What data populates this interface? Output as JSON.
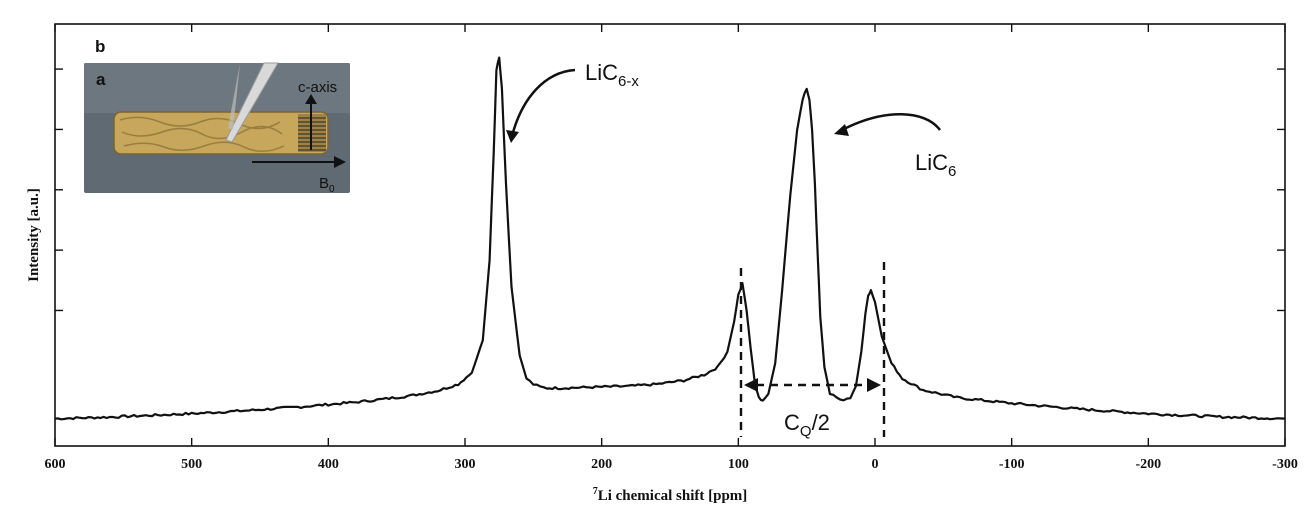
{
  "chart_data": {
    "type": "line",
    "panel_label": "b",
    "xlabel_superscript": "7",
    "xlabel": "Li chemical shift [ppm]",
    "ylabel": "Intensity [a.u.]",
    "xlim": [
      600,
      -300
    ],
    "x_ticks": [
      "600",
      "500",
      "400",
      "300",
      "200",
      "100",
      "0",
      "-100",
      "-200",
      "-300"
    ],
    "y_ticks_labeled": false,
    "grid": false,
    "legend": "none",
    "series": [
      {
        "x": [
          600,
          580,
          560,
          540,
          520,
          500,
          480,
          460,
          440,
          420,
          400,
          380,
          360,
          340,
          320,
          305,
          295,
          287,
          282,
          279,
          277,
          275,
          273,
          270,
          266,
          260,
          255,
          250,
          245,
          240,
          230,
          220,
          200,
          180,
          160,
          140,
          125,
          115,
          108,
          103,
          100,
          97,
          94,
          91,
          88,
          85,
          82,
          78,
          73,
          68,
          62,
          57,
          53,
          50,
          48,
          46,
          44,
          42,
          40,
          37,
          33,
          28,
          23,
          18,
          14,
          10,
          7,
          5,
          3,
          0,
          -5,
          -12,
          -20,
          -35,
          -60,
          -100,
          -150,
          -200,
          -250,
          -300
        ],
        "y": [
          0.035,
          0.037,
          0.039,
          0.042,
          0.045,
          0.048,
          0.052,
          0.056,
          0.061,
          0.066,
          0.072,
          0.078,
          0.086,
          0.095,
          0.108,
          0.125,
          0.155,
          0.24,
          0.45,
          0.73,
          0.95,
          0.98,
          0.9,
          0.65,
          0.38,
          0.2,
          0.14,
          0.125,
          0.118,
          0.115,
          0.115,
          0.116,
          0.118,
          0.12,
          0.125,
          0.135,
          0.15,
          0.17,
          0.21,
          0.29,
          0.36,
          0.39,
          0.32,
          0.22,
          0.13,
          0.09,
          0.08,
          0.1,
          0.18,
          0.37,
          0.62,
          0.79,
          0.87,
          0.9,
          0.87,
          0.79,
          0.65,
          0.47,
          0.3,
          0.17,
          0.1,
          0.09,
          0.085,
          0.09,
          0.12,
          0.21,
          0.31,
          0.36,
          0.37,
          0.34,
          0.25,
          0.18,
          0.14,
          0.11,
          0.09,
          0.075,
          0.06,
          0.048,
          0.04,
          0.035
        ]
      }
    ],
    "annotations": [
      {
        "text": "LiC",
        "subscript": "6-x",
        "points_to_x": 272
      },
      {
        "text": "LiC",
        "subscript": "6",
        "points_to_x": 40
      },
      {
        "text": "C",
        "subscript": "Q",
        "suffix": "/2",
        "span_x": [
          97,
          5
        ]
      }
    ],
    "inset": {
      "label": "a",
      "description_labels": {
        "axis_text": "c-axis",
        "field_text": "B",
        "field_subscript": "0"
      },
      "colors": {
        "background": "#5f6a72",
        "rod": "#c8a85a",
        "rod_dark": "#8a7036",
        "needle": "#d7d7d7",
        "arrow": "#111111"
      }
    }
  }
}
